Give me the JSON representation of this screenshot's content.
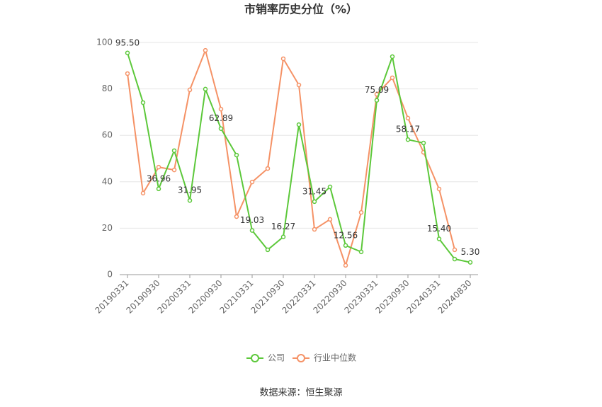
{
  "chart_data": {
    "type": "line",
    "title": "市销率历史分位（%）",
    "source": "数据来源：恒生聚源",
    "categories": [
      "20190331",
      null,
      "20190930",
      null,
      "20200331",
      null,
      "20200930",
      null,
      "20210331",
      null,
      "20210930",
      null,
      "20220331",
      null,
      "20220930",
      null,
      "20230331",
      null,
      "20230930",
      null,
      "20240331",
      null,
      "20240830"
    ],
    "series": [
      {
        "name": "公司",
        "color": "#5cc83a",
        "values": [
          95.5,
          74.1,
          36.96,
          53.4,
          31.95,
          79.9,
          62.89,
          51.5,
          19.03,
          10.7,
          16.27,
          64.6,
          31.45,
          37.8,
          12.56,
          9.8,
          75.09,
          93.9,
          58.17,
          56.7,
          15.4,
          6.7,
          5.3
        ],
        "value_labels": [
          "95.50",
          null,
          "36.96",
          null,
          "31.95",
          null,
          "62.89",
          null,
          "19.03",
          null,
          "16.27",
          null,
          "31.45",
          null,
          "12.56",
          null,
          "75.09",
          null,
          "58.17",
          null,
          "15.40",
          null,
          "5.30"
        ]
      },
      {
        "name": "行业中位数",
        "color": "#f59266",
        "values": [
          86.6,
          35.1,
          46.3,
          45.1,
          79.6,
          96.6,
          71.3,
          25.0,
          39.9,
          45.7,
          93.0,
          81.7,
          19.5,
          23.8,
          4.0,
          26.8,
          77.7,
          84.8,
          67.4,
          52.7,
          36.9,
          10.7,
          null
        ]
      }
    ],
    "ylim": [
      0,
      100
    ],
    "yticks": [
      0,
      20,
      40,
      60,
      80,
      100
    ],
    "grid": true,
    "legend": "bottom"
  }
}
